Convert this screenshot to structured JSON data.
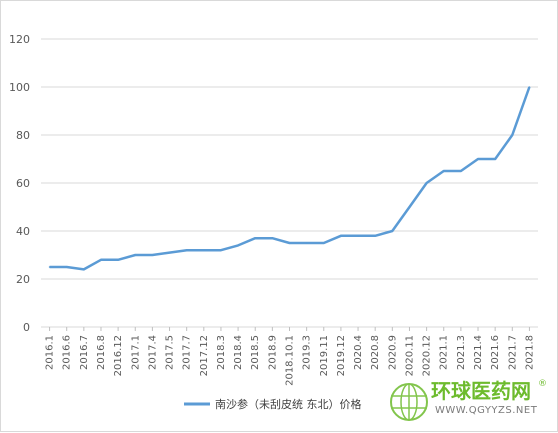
{
  "chart_data": {
    "type": "line",
    "categories": [
      "2016.1",
      "2016.6",
      "2016.7",
      "2016.8",
      "2016.12",
      "2017.1",
      "2017.4",
      "2017.5",
      "2017.7",
      "2017.12",
      "2018.3",
      "2018.4",
      "2018.5",
      "2018.9",
      "2018.10.1",
      "2019.3",
      "2019.11",
      "2019.12",
      "2020.4",
      "2020.8",
      "2020.9",
      "2020.11",
      "2020.12",
      "2021.1",
      "2021.3",
      "2021.4",
      "2021.6",
      "2021.7",
      "2021.8"
    ],
    "series": [
      {
        "name": "南沙参（未刮皮统 东北）价格",
        "color": "#5b9bd5",
        "values": [
          25,
          25,
          24,
          28,
          28,
          30,
          30,
          31,
          32,
          32,
          32,
          34,
          37,
          37,
          35,
          35,
          35,
          38,
          38,
          38,
          40,
          50,
          60,
          65,
          65,
          70,
          70,
          80,
          100
        ]
      }
    ],
    "ylim": [
      0,
      120
    ],
    "yticks": [
      0,
      20,
      40,
      60,
      80,
      100,
      120
    ],
    "grid": true,
    "legend_position": "bottom-center",
    "title": "",
    "xlabel": "",
    "ylabel": ""
  },
  "watermark": {
    "brand_text": "环球医药网",
    "registered_mark": "®",
    "url_text": "WWW.QGYYZS.NET",
    "brand_color": "#6dbb2d",
    "icon": "globe-icon"
  }
}
